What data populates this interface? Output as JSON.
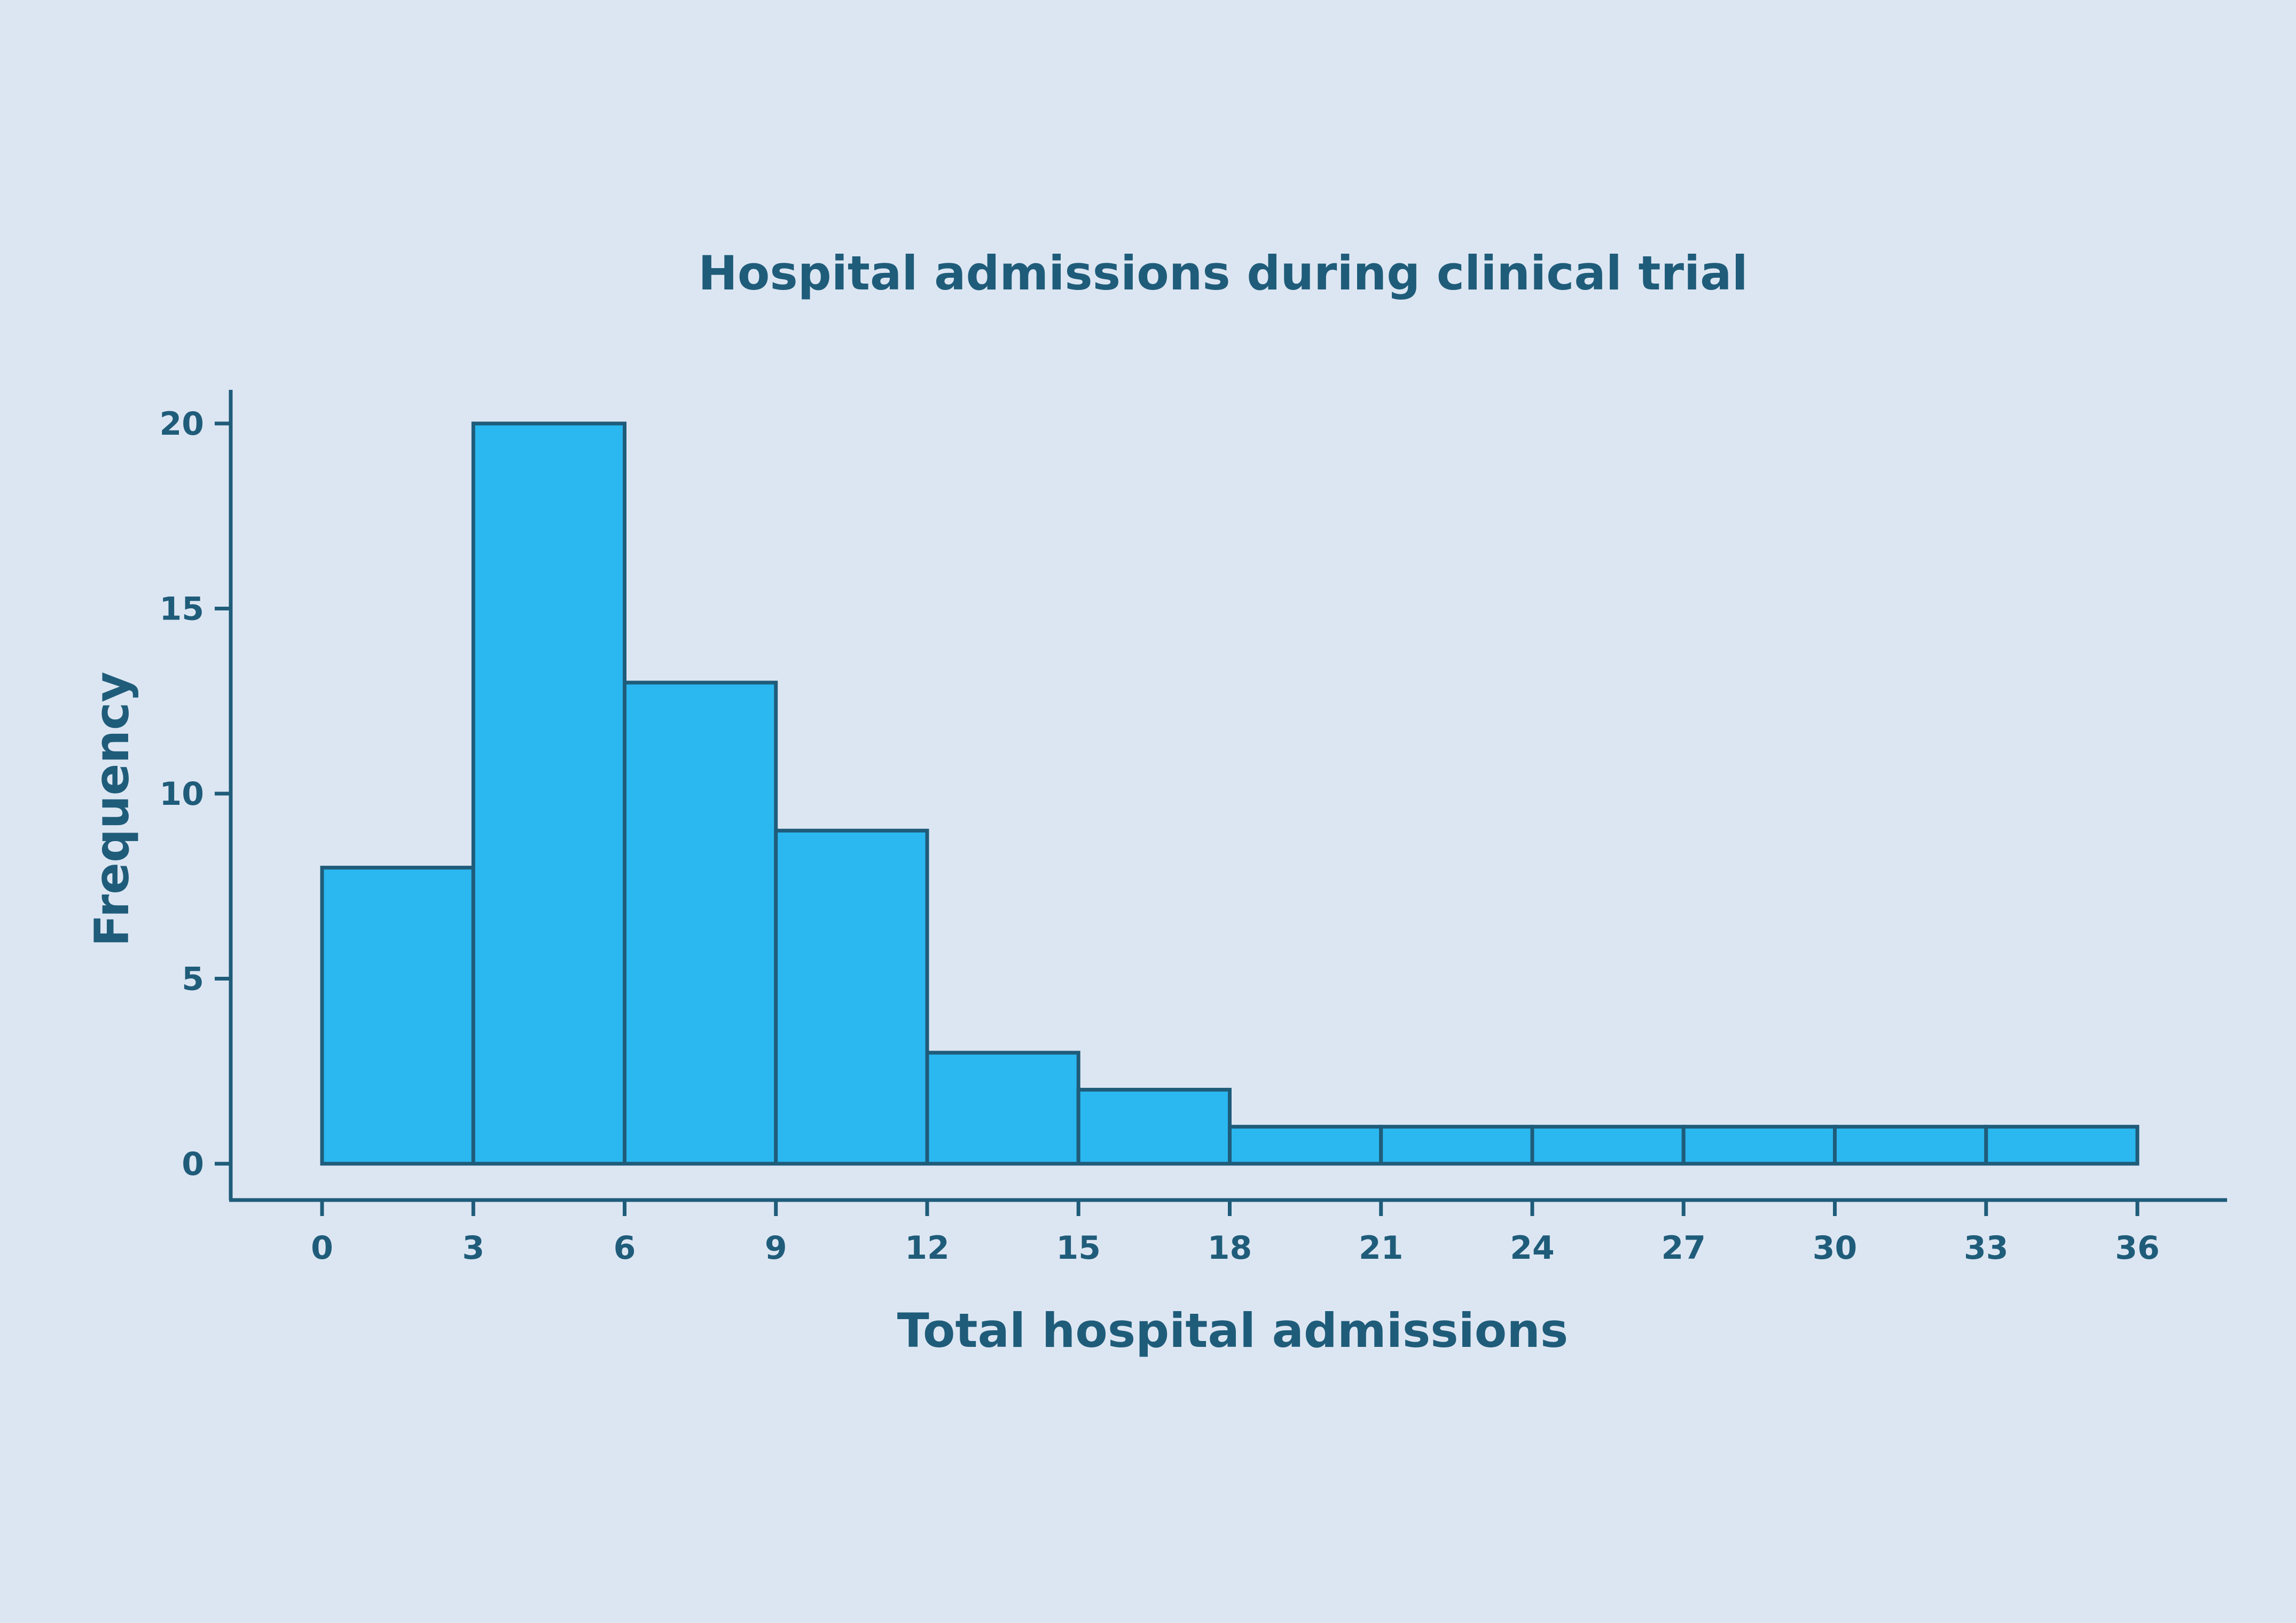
{
  "chart_data": {
    "type": "bar",
    "title": "Hospital admissions during clinical trial",
    "xlabel": "Total hospital admissions",
    "ylabel": "Frequency",
    "bin_edges": [
      0,
      3,
      6,
      9,
      12,
      15,
      18,
      21,
      24,
      27,
      30,
      33,
      36
    ],
    "values": [
      8,
      20,
      13,
      9,
      3,
      2,
      1,
      1,
      1,
      1,
      1,
      1
    ],
    "xticks": [
      0,
      3,
      6,
      9,
      12,
      15,
      18,
      21,
      24,
      27,
      30,
      33,
      36
    ],
    "yticks": [
      0,
      5,
      10,
      15,
      20
    ],
    "xlim": [
      0,
      36
    ],
    "ylim": [
      0,
      21
    ],
    "grid": false,
    "legend": "none",
    "colors": {
      "background": "#dce6f2",
      "bar_fill": "#2bb8f0",
      "bar_edge": "#1f5c7a",
      "text": "#1f5c7a",
      "axis": "#1f5c7a"
    }
  }
}
